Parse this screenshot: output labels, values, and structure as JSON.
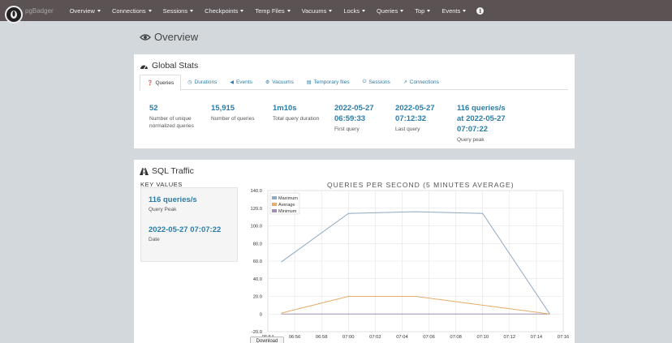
{
  "app": {
    "name": "pgBadger"
  },
  "nav": [
    {
      "label": "Overview"
    },
    {
      "label": "Connections"
    },
    {
      "label": "Sessions"
    },
    {
      "label": "Checkpoints"
    },
    {
      "label": "Temp Files"
    },
    {
      "label": "Vacuums"
    },
    {
      "label": "Locks"
    },
    {
      "label": "Queries"
    },
    {
      "label": "Top"
    },
    {
      "label": "Events"
    }
  ],
  "page": {
    "title": "Overview"
  },
  "global_stats": {
    "title": "Global Stats",
    "tabs": [
      {
        "label": "Queries",
        "icon": "question-circle-icon",
        "active": true
      },
      {
        "label": "Durations",
        "icon": "clock-icon"
      },
      {
        "label": "Events",
        "icon": "bullhorn-icon"
      },
      {
        "label": "Vacuums",
        "icon": "cogs-icon"
      },
      {
        "label": "Temporary files",
        "icon": "file-icon"
      },
      {
        "label": "Sessions",
        "icon": "power-icon"
      },
      {
        "label": "Connections",
        "icon": "external-link-icon"
      }
    ],
    "stats": [
      {
        "value": "52",
        "label": "Number of unique normalized queries"
      },
      {
        "value": "15,915",
        "label": "Number of queries"
      },
      {
        "value": "1m10s",
        "label": "Total query duration"
      },
      {
        "value": "2022-05-27 06:59:33",
        "label": "First query"
      },
      {
        "value": "2022-05-27 07:12:32",
        "label": "Last query"
      },
      {
        "value": "116 queries/s at 2022-05-27 07:07:22",
        "label": "Query peak"
      }
    ]
  },
  "sql_traffic": {
    "title": "SQL Traffic",
    "key_values_title": "KEY VALUES",
    "key_values": [
      {
        "value": "116 queries/s",
        "label": "Query Peak"
      },
      {
        "value": "2022-05-27 07:07:22",
        "label": "Date"
      }
    ],
    "download_label": "Download"
  },
  "chart_data": {
    "type": "line",
    "title": "QUERIES PER SECOND (5 MINUTES AVERAGE)",
    "xlabel": "",
    "ylabel": "",
    "x_ticks": [
      "06:54",
      "06:56",
      "06:58",
      "07:00",
      "07:02",
      "07:04",
      "07:06",
      "07:08",
      "07:10",
      "07:12",
      "07:14",
      "07:16"
    ],
    "y_ticks": [
      "140.0",
      "120.0",
      "100.0",
      "80.0",
      "60.0",
      "40.0",
      "20.0",
      "0",
      "-20.0"
    ],
    "xlim": [
      "06:54",
      "07:16"
    ],
    "ylim": [
      -20,
      140
    ],
    "grid": true,
    "legend_position": "top-left",
    "series": [
      {
        "name": "Maximum",
        "color": "#8ea9c4",
        "x": [
          "06:55",
          "07:00",
          "07:05",
          "07:10",
          "07:15"
        ],
        "values": [
          59,
          114,
          116,
          114,
          0
        ]
      },
      {
        "name": "Average",
        "color": "#e6ac6a",
        "x": [
          "06:55",
          "07:00",
          "07:05",
          "07:10",
          "07:15"
        ],
        "values": [
          1,
          20,
          20,
          10,
          0
        ]
      },
      {
        "name": "Minimum",
        "color": "#a08fb0",
        "x": [
          "06:55",
          "07:00",
          "07:05",
          "07:10",
          "07:15"
        ],
        "values": [
          0,
          0,
          0,
          0,
          0
        ]
      }
    ]
  }
}
